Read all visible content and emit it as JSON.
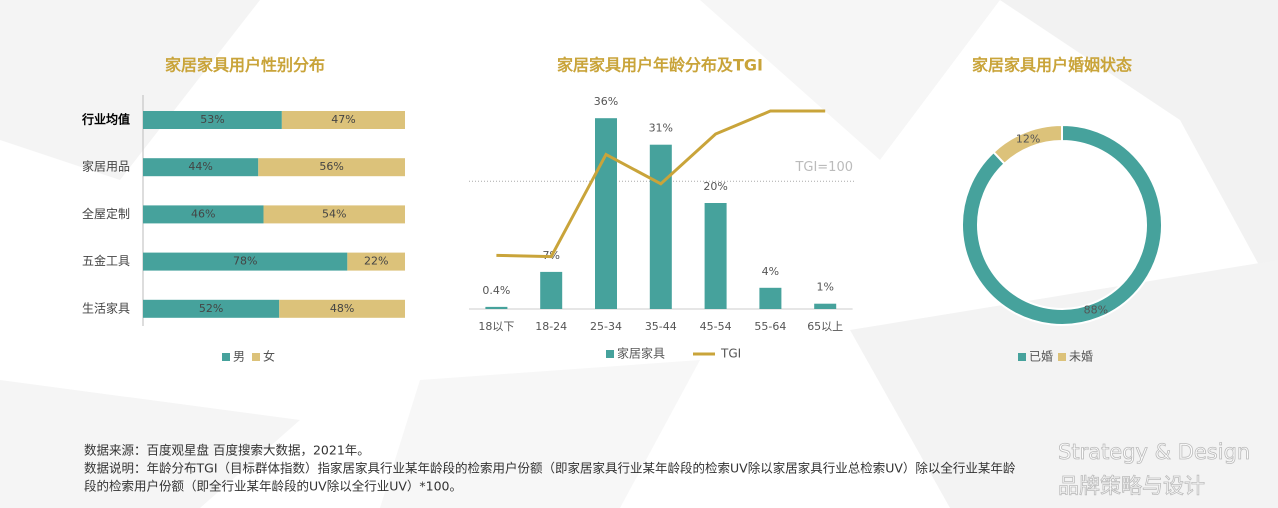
{
  "chart_data": [
    {
      "type": "stacked_hbar",
      "title": "家居家具用户性别分布",
      "categories": [
        "行业均值",
        "家居用品",
        "全屋定制",
        "五金工具",
        "生活家具"
      ],
      "series": [
        {
          "name": "男",
          "color": "#46a29c",
          "values": [
            53,
            44,
            46,
            78,
            52
          ],
          "value_labels": [
            "53%",
            "44%",
            "46%",
            "78%",
            "52%"
          ]
        },
        {
          "name": "女",
          "color": "#dcc27a",
          "values": [
            47,
            56,
            54,
            22,
            48
          ],
          "value_labels": [
            "47%",
            "56%",
            "54%",
            "22%",
            "48%"
          ]
        }
      ],
      "xlim": [
        0,
        100
      ]
    },
    {
      "type": "combo",
      "title": "家居家具用户年龄分布及TGI",
      "categories": [
        "18以下",
        "18-24",
        "25-34",
        "35-44",
        "45-54",
        "55-64",
        "65以上"
      ],
      "series": [
        {
          "name": "家居家具",
          "type": "bar",
          "color": "#46a29c",
          "values": [
            0.4,
            7,
            36,
            31,
            20,
            4,
            1
          ],
          "value_labels": [
            "0.4%",
            "7%",
            "36%",
            "31%",
            "20%",
            "4%",
            "1%"
          ]
        },
        {
          "name": "TGI",
          "type": "line",
          "axis": "y2",
          "color": "#c9a43a",
          "values": [
            42,
            41,
            121,
            98,
            137,
            155,
            155
          ]
        }
      ],
      "ylim": [
        0,
        40
      ],
      "y2lim": [
        0,
        166
      ],
      "reference_line": {
        "value": 100,
        "label": "TGI=100",
        "axis": "y2"
      }
    },
    {
      "type": "donut",
      "title": "家居家具用户婚姻状态",
      "categories": [
        "已婚",
        "未婚"
      ],
      "values": [
        88,
        12
      ],
      "value_labels": [
        "88%",
        "12%"
      ],
      "colors": [
        "#46a29c",
        "#dcc27a"
      ]
    }
  ],
  "notes": [
    "数据来源：百度观星盘  百度搜索大数据，2021年。",
    "数据说明：年龄分布TGI（目标群体指数）指家居家具行业某年龄段的检索用户份额（即家居家具行业某年龄段的检索UV除以家居家具行业总检索UV）除以全行业某年龄",
    "段的检索用户份额（即全行业某年龄段的UV除以全行业UV）*100。"
  ],
  "watermark": {
    "en": "Strategy & Design",
    "cn": "品牌策略与设计"
  }
}
